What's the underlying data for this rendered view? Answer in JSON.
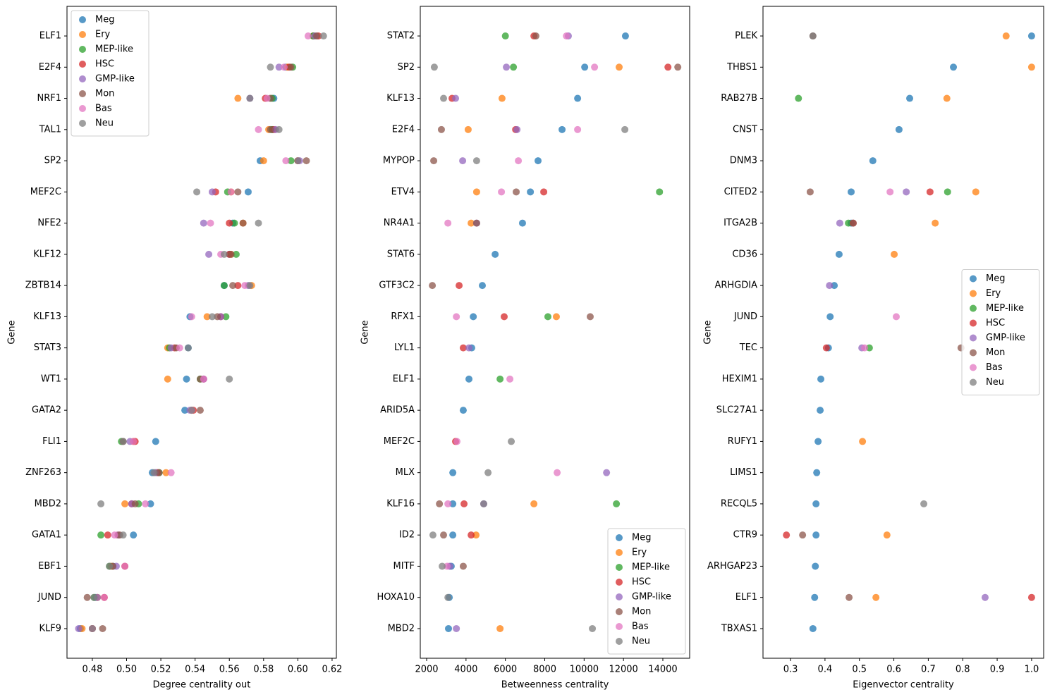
{
  "chart_data": [
    {
      "type": "scatter",
      "xlabel": "Degree centrality out",
      "ylabel": "Gene",
      "legend": "upper left",
      "categories": [
        "ELF1",
        "E2F4",
        "NRF1",
        "TAL1",
        "SP2",
        "MEF2C",
        "NFE2",
        "KLF12",
        "ZBTB14",
        "KLF13",
        "STAT3",
        "WT1",
        "GATA2",
        "FLI1",
        "ZNF263",
        "MBD2",
        "GATA1",
        "EBF1",
        "JUND",
        "KLF9"
      ],
      "xlim": [
        0.4652,
        0.6225
      ],
      "xticks": [
        0.48,
        {
          "value": 0.5,
          "label": "0.50"
        },
        0.52,
        0.54,
        0.56,
        0.58,
        {
          "value": 0.6,
          "label": "0.60"
        },
        0.62
      ],
      "series": [
        {
          "name": "Meg",
          "color": "#1f77b4",
          "values": [
            0.609,
            0.593,
            0.586,
            0.585,
            0.578,
            0.571,
            0.562,
            0.56,
            0.557,
            0.537,
            0.536,
            0.535,
            0.534,
            0.517,
            0.515,
            0.514,
            0.504,
            0.492,
            0.482,
            0.473
          ]
        },
        {
          "name": "Ery",
          "color": "#ff7f0e",
          "values": [
            0.609,
            0.594,
            0.565,
            0.583,
            0.58,
            0.561,
            0.568,
            0.561,
            0.573,
            0.547,
            0.524,
            0.524,
            0.538,
            0.504,
            0.523,
            0.499,
            0.495,
            0.491,
            0.483,
            0.474
          ]
        },
        {
          "name": "MEP-like",
          "color": "#2ca02c",
          "values": [
            0.609,
            0.597,
            0.585,
            0.585,
            0.596,
            0.559,
            0.563,
            0.564,
            0.557,
            0.558,
            0.525,
            0.543,
            0.538,
            0.497,
            0.519,
            0.507,
            0.485,
            0.49,
            0.481,
            0.48
          ]
        },
        {
          "name": "HSC",
          "color": "#d62728",
          "values": [
            0.612,
            0.595,
            0.581,
            0.586,
            0.6,
            0.552,
            0.56,
            0.56,
            0.565,
            0.555,
            0.528,
            0.545,
            0.539,
            0.505,
            0.518,
            0.503,
            0.489,
            0.499,
            0.487,
            0.48
          ]
        },
        {
          "name": "GMP-like",
          "color": "#9467bd",
          "values": [
            0.61,
            0.589,
            0.572,
            0.587,
            0.601,
            0.55,
            0.545,
            0.548,
            0.571,
            0.555,
            0.526,
            0.545,
            0.537,
            0.502,
            0.517,
            0.503,
            0.495,
            0.494,
            0.483,
            0.472
          ]
        },
        {
          "name": "Mon",
          "color": "#8c564b",
          "values": [
            0.611,
            0.596,
            0.584,
            0.584,
            0.605,
            0.565,
            0.568,
            0.561,
            0.562,
            0.553,
            0.529,
            0.543,
            0.543,
            0.498,
            0.519,
            0.505,
            0.496,
            0.492,
            0.477,
            0.486
          ]
        },
        {
          "name": "Bas",
          "color": "#e377c2",
          "values": [
            0.606,
            0.592,
            0.582,
            0.577,
            0.593,
            0.561,
            0.549,
            0.555,
            0.569,
            0.538,
            0.531,
            0.545,
            0.538,
            0.504,
            0.526,
            0.511,
            0.493,
            0.499,
            0.487,
            0.48
          ]
        },
        {
          "name": "Neu",
          "color": "#7f7f7f",
          "values": [
            0.615,
            0.584,
            0.572,
            0.589,
            0.6,
            0.541,
            0.577,
            0.557,
            0.572,
            0.55,
            0.536,
            0.56,
            0.538,
            0.498,
            0.516,
            0.485,
            0.498,
            0.49,
            0.481,
            0.48
          ]
        }
      ]
    },
    {
      "type": "scatter",
      "xlabel": "Betweenness centrality",
      "ylabel": "Gene",
      "legend": "lower right",
      "categories": [
        "STAT2",
        "SP2",
        "KLF13",
        "E2F4",
        "MYPOP",
        "ETV4",
        "NR4A1",
        "STAT6",
        "GTF3C2",
        "RFX1",
        "LYL1",
        "ELF1",
        "ARID5A",
        "MEF2C",
        "MLX",
        "KLF16",
        "ID2",
        "MITF",
        "HOXA10",
        "MBD2"
      ],
      "xlim": [
        1677,
        15362
      ],
      "xticks": [
        2000,
        4000,
        6000,
        8000,
        10000,
        12000,
        14000
      ],
      "series": [
        {
          "name": "Meg",
          "color": "#1f77b4",
          "values": [
            12100,
            10030,
            9670,
            8880,
            7660,
            7270,
            6870,
            5480,
            4830,
            4370,
            4290,
            4150,
            3860,
            null,
            3330,
            3330,
            3330,
            3250,
            3150,
            3110
          ]
        },
        {
          "name": "Ery",
          "color": "#ff7f0e",
          "values": [
            null,
            11780,
            5830,
            4110,
            null,
            4540,
            4260,
            null,
            null,
            8590,
            null,
            null,
            null,
            null,
            null,
            7450,
            4510,
            null,
            null,
            5730
          ]
        },
        {
          "name": "MEP-like",
          "color": "#2ca02c",
          "values": [
            6000,
            6410,
            null,
            null,
            null,
            13830,
            null,
            null,
            null,
            8160,
            null,
            5730,
            null,
            null,
            null,
            11640,
            null,
            null,
            null,
            null
          ]
        },
        {
          "name": "HSC",
          "color": "#d62728",
          "values": [
            7450,
            14260,
            3290,
            6520,
            null,
            7950,
            null,
            null,
            3650,
            5940,
            3860,
            null,
            null,
            3470,
            null,
            3900,
            4260,
            null,
            null,
            null
          ]
        },
        {
          "name": "GMP-like",
          "color": "#9467bd",
          "values": [
            9200,
            6050,
            3470,
            6590,
            3830,
            null,
            4540,
            null,
            null,
            null,
            4150,
            null,
            null,
            null,
            11140,
            4900,
            null,
            3180,
            null,
            3510
          ]
        },
        {
          "name": "Mon",
          "color": "#8c564b",
          "values": [
            7550,
            14760,
            null,
            2750,
            2360,
            6550,
            4540,
            null,
            2290,
            10310,
            null,
            null,
            null,
            null,
            null,
            2650,
            2860,
            3860,
            null,
            null
          ]
        },
        {
          "name": "Bas",
          "color": "#e377c2",
          "values": [
            9100,
            10530,
            null,
            9670,
            6660,
            5800,
            3080,
            null,
            null,
            3510,
            null,
            6230,
            null,
            3540,
            8630,
            3080,
            null,
            3040,
            null,
            null
          ]
        },
        {
          "name": "Neu",
          "color": "#7f7f7f",
          "values": [
            null,
            2390,
            2860,
            12070,
            4540,
            null,
            null,
            null,
            null,
            null,
            null,
            null,
            null,
            6300,
            5120,
            4900,
            2320,
            2790,
            3080,
            10420
          ]
        }
      ]
    },
    {
      "type": "scatter",
      "xlabel": "Eigenvector centrality",
      "ylabel": "Gene",
      "legend": "center right",
      "categories": [
        "PLEK",
        "THBS1",
        "RAB27B",
        "CNST",
        "DNM3",
        "CITED2",
        "ITGA2B",
        "CD36",
        "ARHGDIA",
        "JUND",
        "TEC",
        "HEXIM1",
        "SLC27A1",
        "RUFY1",
        "LIMS1",
        "RECQL5",
        "CTR9",
        "ARHGAP23",
        "ELF1",
        "TBXAS1"
      ],
      "xlim": [
        0.22,
        1.035
      ],
      "xticks": [
        0.3,
        0.4,
        0.5,
        0.6,
        0.7,
        0.8,
        0.9,
        {
          "value": 1,
          "label": "1.0"
        }
      ],
      "series": [
        {
          "name": "Meg",
          "color": "#1f77b4",
          "values": [
            1,
            0.773,
            0.646,
            0.615,
            0.539,
            0.476,
            0.476,
            0.441,
            0.427,
            0.415,
            0.41,
            0.388,
            0.386,
            0.38,
            0.376,
            0.374,
            0.374,
            0.372,
            0.37,
            0.365
          ]
        },
        {
          "name": "Ery",
          "color": "#ff7f0e",
          "values": [
            0.926,
            1,
            0.754,
            null,
            null,
            0.838,
            0.72,
            0.601,
            null,
            null,
            null,
            null,
            null,
            0.509,
            null,
            null,
            0.58,
            null,
            0.548,
            null
          ]
        },
        {
          "name": "MEP-like",
          "color": "#2ca02c",
          "values": [
            null,
            null,
            0.323,
            null,
            null,
            0.756,
            0.468,
            null,
            null,
            null,
            0.529,
            null,
            null,
            null,
            null,
            null,
            null,
            null,
            null,
            null
          ]
        },
        {
          "name": "HSC",
          "color": "#d62728",
          "values": [
            null,
            null,
            null,
            null,
            null,
            0.705,
            0.482,
            null,
            null,
            null,
            0.404,
            null,
            null,
            null,
            null,
            null,
            0.288,
            null,
            1,
            null
          ]
        },
        {
          "name": "GMP-like",
          "color": "#9467bd",
          "values": [
            null,
            null,
            null,
            null,
            null,
            0.636,
            0.443,
            null,
            0.413,
            null,
            0.507,
            null,
            null,
            null,
            null,
            null,
            null,
            null,
            0.865,
            null
          ]
        },
        {
          "name": "Mon",
          "color": "#8c564b",
          "values": [
            0.365,
            null,
            null,
            null,
            null,
            0.357,
            0.482,
            null,
            null,
            null,
            0.795,
            null,
            null,
            null,
            null,
            null,
            0.335,
            null,
            0.47,
            null
          ]
        },
        {
          "name": "Bas",
          "color": "#e377c2",
          "values": [
            null,
            null,
            null,
            null,
            null,
            0.589,
            null,
            null,
            null,
            0.607,
            0.515,
            null,
            null,
            null,
            null,
            null,
            null,
            null,
            null,
            null
          ]
        },
        {
          "name": "Neu",
          "color": "#7f7f7f",
          "values": [
            0.365,
            null,
            null,
            null,
            null,
            null,
            null,
            null,
            null,
            null,
            null,
            null,
            null,
            null,
            null,
            0.687,
            null,
            null,
            null,
            null
          ]
        }
      ]
    }
  ]
}
